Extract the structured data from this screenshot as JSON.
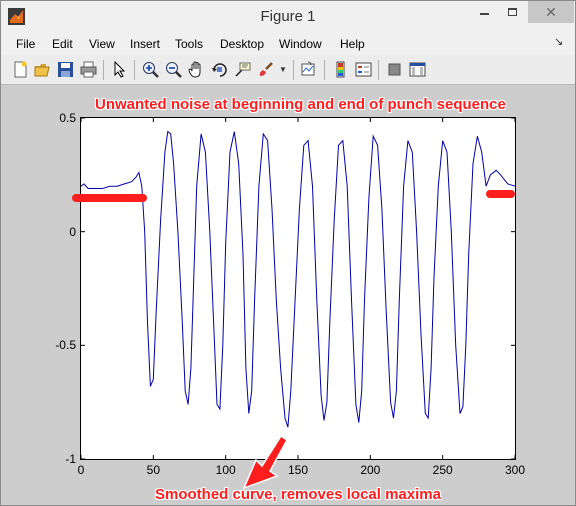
{
  "window": {
    "title": "Figure 1",
    "close_glyph": "✕"
  },
  "menu": {
    "items": [
      "File",
      "Edit",
      "View",
      "Insert",
      "Tools",
      "Desktop",
      "Window",
      "Help"
    ],
    "overflow_glyph": "↘"
  },
  "toolbar": {
    "icons": [
      "new-figure-icon",
      "open-file-icon",
      "save-icon",
      "print-icon",
      "edit-plot-arrow-icon",
      "zoom-in-icon",
      "zoom-out-icon",
      "pan-hand-icon",
      "rotate-3d-icon",
      "data-cursor-icon",
      "brush-icon",
      "brush-dropdown-icon",
      "link-plot-icon",
      "colorbar-icon",
      "legend-icon",
      "hide-plot-tools-icon",
      "show-plot-tools-icon"
    ]
  },
  "annotations": {
    "top": "Unwanted noise at beginning and end of punch sequence",
    "bottom": "Smoothed curve, removes local maxima"
  },
  "colors": {
    "line": "#0000aa",
    "annotation": "#ff1e1e",
    "figure_bg": "#cdcdcd"
  },
  "chart_data": {
    "type": "line",
    "title": "",
    "xlabel": "",
    "ylabel": "",
    "xlim": [
      0,
      300
    ],
    "ylim": [
      -1,
      0.5
    ],
    "xticks": [
      0,
      50,
      100,
      150,
      200,
      250,
      300
    ],
    "xtick_labels": [
      "0",
      "50",
      "100",
      "150",
      "200",
      "250",
      "300"
    ],
    "yticks": [
      0.5,
      0,
      -0.5,
      -1
    ],
    "ytick_labels": [
      "0.5",
      "0",
      "-0.5",
      "-1"
    ],
    "grid": false,
    "series": [
      {
        "color": "#0000aa",
        "x": [
          0,
          2,
          5,
          10,
          15,
          20,
          25,
          30,
          35,
          38,
          40,
          42,
          44,
          46,
          48,
          50,
          52,
          55,
          58,
          60,
          62,
          64,
          67,
          70,
          72,
          74,
          76,
          78,
          80,
          83,
          86,
          89,
          92,
          94,
          96,
          98,
          100,
          103,
          106,
          109,
          112,
          114,
          116,
          118,
          120,
          123,
          126,
          129,
          132,
          135,
          138,
          141,
          143,
          145,
          148,
          151,
          154,
          157,
          160,
          163,
          166,
          168,
          170,
          172,
          175,
          178,
          181,
          184,
          187,
          190,
          192,
          194,
          196,
          199,
          202,
          205,
          208,
          211,
          214,
          216,
          218,
          220,
          223,
          226,
          229,
          232,
          235,
          238,
          240,
          242,
          244,
          247,
          250,
          253,
          256,
          259,
          262,
          264,
          266,
          268,
          271,
          274,
          277,
          280,
          283,
          287,
          290,
          295,
          300
        ],
        "y": [
          0.2,
          0.21,
          0.19,
          0.19,
          0.19,
          0.2,
          0.2,
          0.21,
          0.22,
          0.24,
          0.26,
          0.2,
          0.0,
          -0.4,
          -0.68,
          -0.65,
          -0.35,
          0.05,
          0.35,
          0.44,
          0.43,
          0.3,
          0.0,
          -0.4,
          -0.7,
          -0.76,
          -0.6,
          -0.2,
          0.2,
          0.43,
          0.35,
          0.0,
          -0.45,
          -0.76,
          -0.78,
          -0.5,
          -0.05,
          0.35,
          0.44,
          0.3,
          -0.1,
          -0.6,
          -0.8,
          -0.7,
          -0.3,
          0.2,
          0.43,
          0.4,
          0.1,
          -0.3,
          -0.6,
          -0.82,
          -0.86,
          -0.7,
          -0.3,
          0.1,
          0.38,
          0.4,
          0.2,
          -0.3,
          -0.72,
          -0.83,
          -0.75,
          -0.4,
          0.05,
          0.38,
          0.4,
          0.2,
          -0.3,
          -0.76,
          -0.84,
          -0.7,
          -0.3,
          0.15,
          0.42,
          0.38,
          0.1,
          -0.35,
          -0.75,
          -0.82,
          -0.7,
          -0.3,
          0.2,
          0.4,
          0.35,
          0.0,
          -0.45,
          -0.8,
          -0.82,
          -0.6,
          -0.2,
          0.2,
          0.4,
          0.35,
          0.0,
          -0.5,
          -0.8,
          -0.77,
          -0.5,
          -0.1,
          0.3,
          0.42,
          0.35,
          0.2,
          0.25,
          0.27,
          0.25,
          0.21,
          0.2
        ]
      }
    ]
  }
}
